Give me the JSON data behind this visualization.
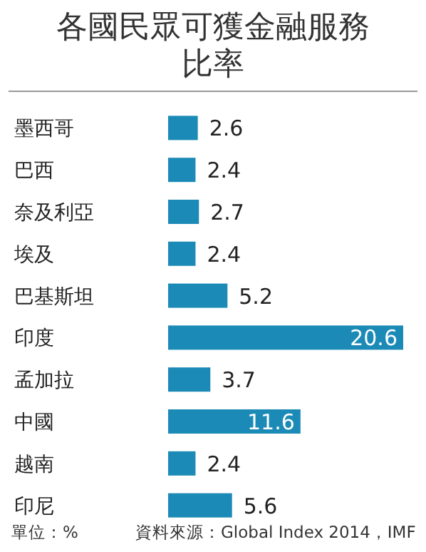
{
  "chart_data": {
    "type": "bar",
    "orientation": "horizontal",
    "title": "各國民眾可獲金融服務比率",
    "categories": [
      "墨西哥",
      "巴西",
      "奈及利亞",
      "埃及",
      "巴基斯坦",
      "印度",
      "孟加拉",
      "中國",
      "越南",
      "印尼"
    ],
    "values": [
      2.6,
      2.4,
      2.7,
      2.4,
      5.2,
      20.6,
      3.7,
      11.6,
      2.4,
      5.6
    ],
    "color": "#1b8ab6",
    "data_labels": true,
    "annotations": [
      "單位：%",
      "資料來源：Global Index 2014，IMF"
    ]
  }
}
